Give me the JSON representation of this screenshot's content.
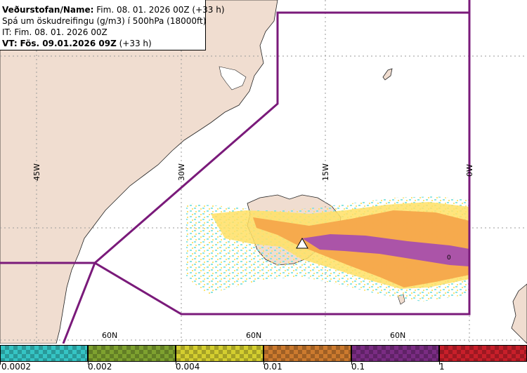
{
  "header": {
    "line1_label": "Veðurstofan/Name:",
    "line1_value": "Fim. 08. 01. 2026 00Z (+33 h)",
    "line2": "Spá um öskudreifingu (g/m3) í 500hPa (18000ft)",
    "line3": "IT: Fim. 08. 01. 2026 00Z",
    "line4_label": "VT:",
    "line4_value": "Fös. 09.01.2026 09Z",
    "line4_suffix": "(+33 h)"
  },
  "map": {
    "longitude_labels": [
      "45W",
      "30W",
      "15W",
      "0W"
    ],
    "latitude_labels": [
      "60N",
      "60N",
      "60N"
    ],
    "contour_label": "0",
    "colors": {
      "land": "#f0ddd0",
      "sea": "#ffffff",
      "boundary": "#7a1a7a",
      "grid": "#9a9a9a",
      "ash_low": "#ffe066",
      "ash_mid": "#f5a64b",
      "ash_high": "#a64fad",
      "ash_scatter": "#7fe1df"
    }
  },
  "legend": {
    "labels": [
      "0.0002",
      "0.002",
      "0.004",
      "0.01",
      "0.1",
      "1"
    ],
    "colors": [
      "#35c4c4",
      "#7ea12f",
      "#d4ce2f",
      "#cc7a2e",
      "#7a2c83",
      "#c81f2a"
    ]
  }
}
